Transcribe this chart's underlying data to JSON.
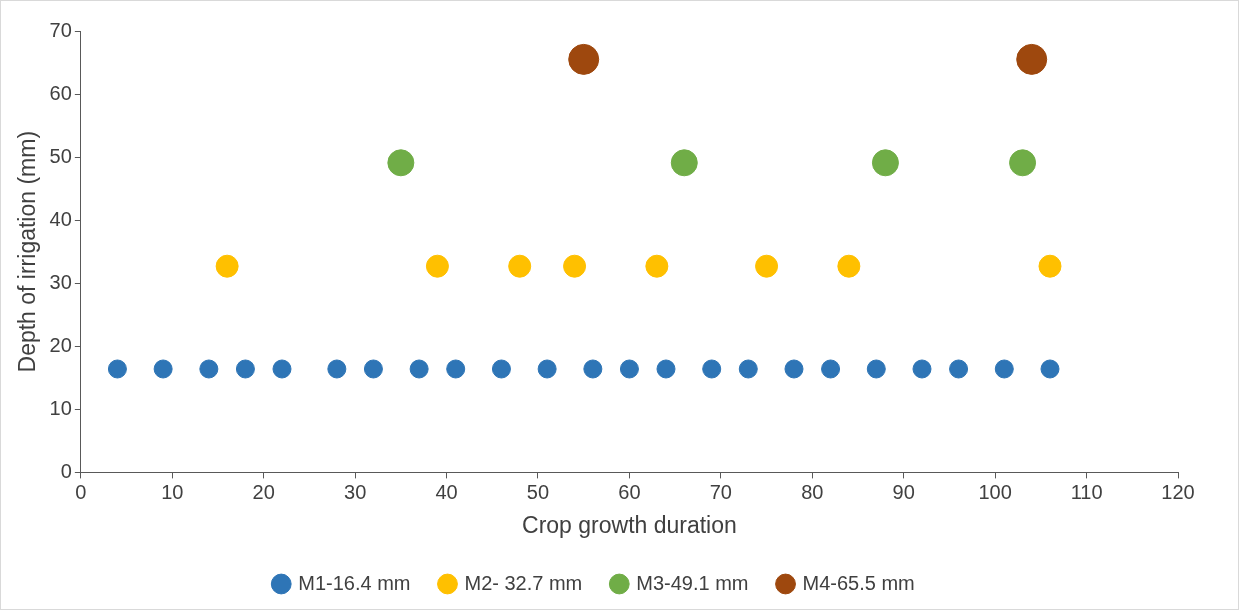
{
  "chart_data": {
    "type": "scatter",
    "xlabel": "Crop growth duration",
    "ylabel": "Depth of irrigation (mm)",
    "xlim": [
      0,
      120
    ],
    "xticks": [
      0,
      10,
      20,
      30,
      40,
      50,
      60,
      70,
      80,
      90,
      100,
      110,
      120
    ],
    "ylim": [
      0,
      70
    ],
    "yticks": [
      0,
      10,
      20,
      30,
      40,
      50,
      60,
      70
    ],
    "grid": false,
    "legend": "bottom",
    "marker": "circle",
    "series": [
      {
        "name": "M1-16.4 mm",
        "color": "#2e75b6",
        "x": [
          4,
          9,
          14,
          18,
          22,
          28,
          32,
          37,
          41,
          46,
          51,
          56,
          60,
          64,
          69,
          73,
          78,
          82,
          87,
          92,
          96,
          101,
          106
        ],
        "values": [
          16.4,
          16.4,
          16.4,
          16.4,
          16.4,
          16.4,
          16.4,
          16.4,
          16.4,
          16.4,
          16.4,
          16.4,
          16.4,
          16.4,
          16.4,
          16.4,
          16.4,
          16.4,
          16.4,
          16.4,
          16.4,
          16.4,
          16.4
        ]
      },
      {
        "name": "M2- 32.7 mm",
        "color": "#ffc000",
        "x": [
          16,
          39,
          48,
          54,
          63,
          75,
          84,
          106
        ],
        "values": [
          32.7,
          32.7,
          32.7,
          32.7,
          32.7,
          32.7,
          32.7,
          32.7
        ]
      },
      {
        "name": "M3-49.1 mm",
        "color": "#70ad47",
        "x": [
          35,
          66,
          88,
          103
        ],
        "values": [
          49.1,
          49.1,
          49.1,
          49.1
        ]
      },
      {
        "name": "M4-65.5 mm",
        "color": "#9e480e",
        "x": [
          55,
          104
        ],
        "values": [
          65.5,
          65.5
        ]
      }
    ]
  }
}
